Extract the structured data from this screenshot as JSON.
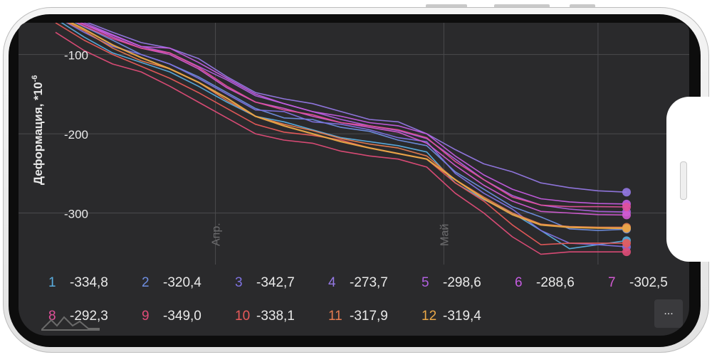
{
  "colors": {
    "screen_bg": "#2a2a2c",
    "grid": "#4a4a4d",
    "text": "#e9e9e9"
  },
  "more_button": "...",
  "legend": [
    {
      "num": "1",
      "value": "-334,8",
      "color": "#5aaee0"
    },
    {
      "num": "2",
      "value": "-320,4",
      "color": "#6e8ee0"
    },
    {
      "num": "3",
      "value": "-342,7",
      "color": "#7e72e0"
    },
    {
      "num": "4",
      "value": "-273,7",
      "color": "#9478e4"
    },
    {
      "num": "5",
      "value": "-298,6",
      "color": "#b060e0"
    },
    {
      "num": "6",
      "value": "-288,6",
      "color": "#c45ce0"
    },
    {
      "num": "7",
      "value": "-302,5",
      "color": "#d25ad2"
    },
    {
      "num": "8",
      "value": "-292,3",
      "color": "#e0509a"
    },
    {
      "num": "9",
      "value": "-349,0",
      "color": "#e04c78"
    },
    {
      "num": "10",
      "value": "-338,1",
      "color": "#e85a5a"
    },
    {
      "num": "11",
      "value": "-317,9",
      "color": "#e67c50"
    },
    {
      "num": "12",
      "value": "-319,4",
      "color": "#eaa848"
    }
  ],
  "chart_data": {
    "type": "line",
    "ylabel": "Деформация, *10",
    "ylabel_sup": "-6",
    "yticks": [
      -100,
      -200,
      -300
    ],
    "ylim": [
      -365,
      -60
    ],
    "xlim": [
      0,
      100
    ],
    "xticks": [
      {
        "pos": 28,
        "label": "Апр."
      },
      {
        "pos": 68,
        "label": "Май"
      }
    ],
    "grid": true,
    "x": [
      0,
      5,
      10,
      15,
      20,
      25,
      30,
      35,
      40,
      45,
      50,
      55,
      60,
      65,
      70,
      75,
      80,
      85,
      90,
      95,
      100
    ],
    "series": [
      {
        "name": "1",
        "values": [
          -55,
          -78,
          -98,
          -110,
          -122,
          -140,
          -160,
          -178,
          -185,
          -195,
          -205,
          -210,
          -215,
          -223,
          -262,
          -283,
          -300,
          -322,
          -345,
          -340,
          -334.8
        ]
      },
      {
        "name": "2",
        "values": [
          -48,
          -65,
          -82,
          -100,
          -112,
          -128,
          -148,
          -168,
          -180,
          -182,
          -192,
          -197,
          -208,
          -215,
          -248,
          -270,
          -292,
          -305,
          -320,
          -322,
          -320.4
        ]
      },
      {
        "name": "3",
        "values": [
          -52,
          -72,
          -90,
          -100,
          -112,
          -130,
          -150,
          -170,
          -172,
          -185,
          -188,
          -195,
          -205,
          -210,
          -250,
          -275,
          -295,
          -322,
          -338,
          -340,
          -342.7
        ]
      },
      {
        "name": "4",
        "values": [
          -42,
          -58,
          -72,
          -85,
          -92,
          -105,
          -128,
          -148,
          -156,
          -162,
          -172,
          -182,
          -185,
          -200,
          -220,
          -238,
          -248,
          -262,
          -268,
          -272,
          -273.7
        ]
      },
      {
        "name": "5",
        "values": [
          -45,
          -60,
          -75,
          -90,
          -98,
          -115,
          -132,
          -152,
          -162,
          -172,
          -182,
          -190,
          -196,
          -206,
          -232,
          -258,
          -278,
          -290,
          -295,
          -298,
          -298.6
        ]
      },
      {
        "name": "6",
        "values": [
          -46,
          -62,
          -76,
          -90,
          -92,
          -110,
          -130,
          -150,
          -162,
          -172,
          -178,
          -186,
          -190,
          -200,
          -228,
          -252,
          -270,
          -282,
          -286,
          -288,
          -288.6
        ]
      },
      {
        "name": "7",
        "values": [
          -44,
          -62,
          -78,
          -92,
          -100,
          -118,
          -142,
          -160,
          -168,
          -178,
          -186,
          -192,
          -198,
          -212,
          -240,
          -265,
          -285,
          -298,
          -300,
          -302,
          -302.5
        ]
      },
      {
        "name": "8",
        "values": [
          -46,
          -64,
          -80,
          -92,
          -98,
          -116,
          -140,
          -160,
          -170,
          -176,
          -186,
          -190,
          -195,
          -205,
          -235,
          -258,
          -280,
          -290,
          -292,
          -292,
          -292.3
        ]
      },
      {
        "name": "9",
        "values": [
          -72,
          -95,
          -112,
          -122,
          -140,
          -160,
          -180,
          -200,
          -208,
          -212,
          -222,
          -228,
          -232,
          -242,
          -275,
          -300,
          -330,
          -352,
          -349,
          -349,
          -349.0
        ]
      },
      {
        "name": "10",
        "values": [
          -60,
          -82,
          -100,
          -115,
          -130,
          -148,
          -168,
          -188,
          -198,
          -202,
          -208,
          -218,
          -225,
          -232,
          -262,
          -285,
          -315,
          -340,
          -338,
          -338,
          -338.1
        ]
      },
      {
        "name": "11",
        "values": [
          -52,
          -70,
          -92,
          -108,
          -118,
          -135,
          -158,
          -178,
          -188,
          -196,
          -206,
          -213,
          -218,
          -228,
          -258,
          -280,
          -300,
          -314,
          -317,
          -318,
          -317.9
        ]
      },
      {
        "name": "12",
        "values": [
          -50,
          -68,
          -88,
          -104,
          -118,
          -135,
          -155,
          -178,
          -190,
          -200,
          -210,
          -218,
          -225,
          -232,
          -258,
          -282,
          -302,
          -315,
          -318,
          -319,
          -319.4
        ]
      }
    ]
  }
}
